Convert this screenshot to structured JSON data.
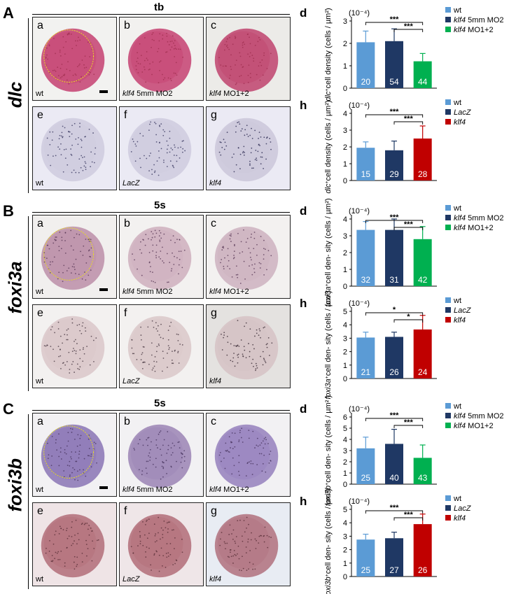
{
  "rows": [
    {
      "letter": "A",
      "gene": "dlc",
      "stage": "tb",
      "top": [
        {
          "sub": "a",
          "cap": "wt",
          "bg": "#f2f2f0",
          "emb": "#c84a78",
          "dot": "#a03050",
          "outline": true,
          "scale": true
        },
        {
          "sub": "b",
          "cap": "klf4 5mm MO2",
          "bg": "#f2f1ef",
          "emb": "#c84a78",
          "dot": "#a03050",
          "outline": false,
          "scale": false
        },
        {
          "sub": "c",
          "cap": "klf4 MO1+2",
          "bg": "#ecebe8",
          "emb": "#c24d74",
          "dot": "#a03050",
          "outline": false,
          "scale": false
        }
      ],
      "bottom": [
        {
          "sub": "e",
          "cap": "wt",
          "bg": "#ebeaf4",
          "emb": "#d0cde0",
          "dot": "#3a3860",
          "outline": false,
          "scale": false
        },
        {
          "sub": "f",
          "cap": "LacZ",
          "bg": "#ebeaf4",
          "emb": "#d0cde0",
          "dot": "#3a3860",
          "outline": false,
          "scale": false
        },
        {
          "sub": "g",
          "cap": "klf4",
          "bg": "#ebeaf4",
          "emb": "#cdc9dc",
          "dot": "#2a2850",
          "outline": false,
          "scale": false
        }
      ]
    },
    {
      "letter": "B",
      "gene": "foxi3a",
      "stage": "5s",
      "top": [
        {
          "sub": "a",
          "cap": "wt",
          "bg": "#f1efee",
          "emb": "#bf94ac",
          "dot": "#5a3a58",
          "outline": true,
          "scale": true
        },
        {
          "sub": "b",
          "cap": "klf4 5mm MO2",
          "bg": "#f3f1f0",
          "emb": "#d0b2c0",
          "dot": "#5a3a58",
          "outline": false,
          "scale": false
        },
        {
          "sub": "c",
          "cap": "klf4 MO1+2",
          "bg": "#f3f1f0",
          "emb": "#cfb5c2",
          "dot": "#5a3a58",
          "outline": false,
          "scale": false
        }
      ],
      "bottom": [
        {
          "sub": "e",
          "cap": "wt",
          "bg": "#f3f1f0",
          "emb": "#dcc9cb",
          "dot": "#4a3a44",
          "outline": false,
          "scale": false
        },
        {
          "sub": "f",
          "cap": "LacZ",
          "bg": "#f3f1f0",
          "emb": "#dccacb",
          "dot": "#4a3a44",
          "outline": false,
          "scale": false
        },
        {
          "sub": "g",
          "cap": "klf4",
          "bg": "#e4e2e0",
          "emb": "#d6c4c6",
          "dot": "#3a2a34",
          "outline": false,
          "scale": false
        }
      ]
    },
    {
      "letter": "C",
      "gene": "foxi3b",
      "stage": "5s",
      "top": [
        {
          "sub": "a",
          "cap": "wt",
          "bg": "#f2f1f3",
          "emb": "#8f7bb8",
          "dot": "#4a3660",
          "outline": true,
          "scale": true
        },
        {
          "sub": "b",
          "cap": "klf4 5mm MO2",
          "bg": "#f2f1f3",
          "emb": "#a08ab8",
          "dot": "#4a3660",
          "outline": false,
          "scale": false
        },
        {
          "sub": "c",
          "cap": "klf4 MO1+2",
          "bg": "#f2f1f3",
          "emb": "#9a86c0",
          "dot": "#4a3660",
          "outline": false,
          "scale": false
        }
      ],
      "bottom": [
        {
          "sub": "e",
          "cap": "wt",
          "bg": "#efe4e6",
          "emb": "#b5737e",
          "dot": "#5a3038",
          "outline": false,
          "scale": false
        },
        {
          "sub": "f",
          "cap": "LacZ",
          "bg": "#efe6e8",
          "emb": "#b5737e",
          "dot": "#5a3038",
          "outline": false,
          "scale": false
        },
        {
          "sub": "g",
          "cap": "klf4",
          "bg": "#e8ecf3",
          "emb": "#b47884",
          "dot": "#5a3038",
          "outline": false,
          "scale": false
        }
      ]
    }
  ],
  "chart_data": [
    {
      "id": "A-d",
      "panel": "d",
      "type": "bar",
      "ylabel_gene": "dlc",
      "ylabel": "cell density (cells / µm²)",
      "multiplier": "(10⁻⁴)",
      "categories": [
        "wt",
        "klf4 5mm MO2",
        "klf4 MO1+2"
      ],
      "values": [
        2.05,
        2.1,
        1.2
      ],
      "errors": [
        0.5,
        0.55,
        0.35
      ],
      "n": [
        "20",
        "54",
        "44"
      ],
      "colors": [
        "#5b9bd5",
        "#1f3864",
        "#00b050"
      ],
      "ylim": [
        0,
        3
      ],
      "yticks": [
        0,
        1,
        2,
        3
      ],
      "legend": [
        {
          "pre": "",
          "ital": "",
          "post": "wt"
        },
        {
          "pre": "",
          "ital": "klf4",
          "post": " 5mm MO2"
        },
        {
          "pre": "",
          "ital": "klf4",
          "post": " MO1+2"
        }
      ],
      "sig": [
        {
          "from": 0,
          "to": 2,
          "label": "***"
        },
        {
          "from": 1,
          "to": 2,
          "label": "***"
        }
      ]
    },
    {
      "id": "A-h",
      "panel": "h",
      "type": "bar",
      "ylabel_gene": "dlc",
      "ylabel": "cell density (cells / µm²)",
      "multiplier": "(10⁻⁴)",
      "categories": [
        "wt",
        "LacZ",
        "klf4"
      ],
      "values": [
        1.95,
        1.8,
        2.5
      ],
      "errors": [
        0.35,
        0.55,
        0.75
      ],
      "n": [
        "15",
        "29",
        "28"
      ],
      "colors": [
        "#5b9bd5",
        "#1f3864",
        "#c00000"
      ],
      "ylim": [
        0,
        4
      ],
      "yticks": [
        0,
        1,
        2,
        3,
        4
      ],
      "legend": [
        {
          "pre": "",
          "ital": "",
          "post": "wt"
        },
        {
          "pre": "",
          "ital": "LacZ",
          "post": ""
        },
        {
          "pre": "",
          "ital": "klf4",
          "post": ""
        }
      ],
      "sig": [
        {
          "from": 0,
          "to": 2,
          "label": "***"
        },
        {
          "from": 1,
          "to": 2,
          "label": "***"
        }
      ]
    },
    {
      "id": "B-d",
      "panel": "d",
      "type": "bar",
      "ylabel_gene": "foxi3a",
      "ylabel": "cell den- sity (cells / µm²)",
      "multiplier": "(10⁻⁴)",
      "categories": [
        "wt",
        "klf4 5mm MO2",
        "klf4 MO1+2"
      ],
      "values": [
        3.35,
        3.35,
        2.8
      ],
      "errors": [
        0.5,
        0.65,
        0.75
      ],
      "n": [
        "32",
        "31",
        "42"
      ],
      "colors": [
        "#5b9bd5",
        "#1f3864",
        "#00b050"
      ],
      "ylim": [
        0,
        4
      ],
      "yticks": [
        0,
        1,
        2,
        3,
        4
      ],
      "legend": [
        {
          "pre": "",
          "ital": "",
          "post": "wt"
        },
        {
          "pre": "",
          "ital": "klf4",
          "post": " 5mm MO2"
        },
        {
          "pre": "",
          "ital": "klf4",
          "post": " MO1+2"
        }
      ],
      "sig": [
        {
          "from": 0,
          "to": 2,
          "label": "***"
        },
        {
          "from": 1,
          "to": 2,
          "label": "***"
        }
      ]
    },
    {
      "id": "B-h",
      "panel": "h",
      "type": "bar",
      "ylabel_gene": "foxi3a",
      "ylabel": "cell den- sity (cells / µm²)",
      "multiplier": "(10⁻⁴)",
      "categories": [
        "wt",
        "LacZ",
        "klf4"
      ],
      "values": [
        3.05,
        3.1,
        3.65
      ],
      "errors": [
        0.4,
        0.35,
        1.05
      ],
      "n": [
        "21",
        "26",
        "24"
      ],
      "colors": [
        "#5b9bd5",
        "#1f3864",
        "#c00000"
      ],
      "ylim": [
        0,
        5
      ],
      "yticks": [
        0,
        1,
        2,
        3,
        4,
        5
      ],
      "legend": [
        {
          "pre": "",
          "ital": "",
          "post": "wt"
        },
        {
          "pre": "",
          "ital": "LacZ",
          "post": ""
        },
        {
          "pre": "",
          "ital": "klf4",
          "post": ""
        }
      ],
      "sig": [
        {
          "from": 0,
          "to": 2,
          "label": "*"
        },
        {
          "from": 1,
          "to": 2,
          "label": "*"
        }
      ]
    },
    {
      "id": "C-d",
      "panel": "d",
      "type": "bar",
      "ylabel_gene": "foxi3b",
      "ylabel": "cell den- sity (cells / µm² )",
      "multiplier": "(10⁻⁴)",
      "categories": [
        "wt",
        "klf4 5mm MO2",
        "klf4 MO1+2"
      ],
      "values": [
        3.2,
        3.6,
        2.35
      ],
      "errors": [
        1.0,
        1.3,
        1.15
      ],
      "n": [
        "25",
        "40",
        "43"
      ],
      "colors": [
        "#5b9bd5",
        "#1f3864",
        "#00b050"
      ],
      "ylim": [
        0,
        6
      ],
      "yticks": [
        0,
        1,
        2,
        3,
        4,
        5,
        6
      ],
      "legend": [
        {
          "pre": "",
          "ital": "",
          "post": "wt"
        },
        {
          "pre": "",
          "ital": "klf4",
          "post": " 5mm MO2"
        },
        {
          "pre": "",
          "ital": "klf4",
          "post": " MO1+2"
        }
      ],
      "sig": [
        {
          "from": 0,
          "to": 2,
          "label": "***"
        },
        {
          "from": 1,
          "to": 2,
          "label": "***"
        }
      ]
    },
    {
      "id": "C-h",
      "panel": "h",
      "type": "bar",
      "ylabel_gene": "foxi3b",
      "ylabel": "cell den- sity (cells / µm²)",
      "multiplier": "(10⁻⁴)",
      "categories": [
        "wt",
        "LacZ",
        "klf4"
      ],
      "values": [
        2.75,
        2.85,
        3.9
      ],
      "errors": [
        0.4,
        0.45,
        0.75
      ],
      "n": [
        "25",
        "27",
        "26"
      ],
      "colors": [
        "#5b9bd5",
        "#1f3864",
        "#c00000"
      ],
      "ylim": [
        0,
        5
      ],
      "yticks": [
        0,
        1,
        2,
        3,
        4,
        5
      ],
      "legend": [
        {
          "pre": "",
          "ital": "",
          "post": "wt"
        },
        {
          "pre": "",
          "ital": "LacZ",
          "post": ""
        },
        {
          "pre": "",
          "ital": "klf4",
          "post": ""
        }
      ],
      "sig": [
        {
          "from": 0,
          "to": 2,
          "label": "***"
        },
        {
          "from": 1,
          "to": 2,
          "label": "***"
        }
      ]
    }
  ]
}
